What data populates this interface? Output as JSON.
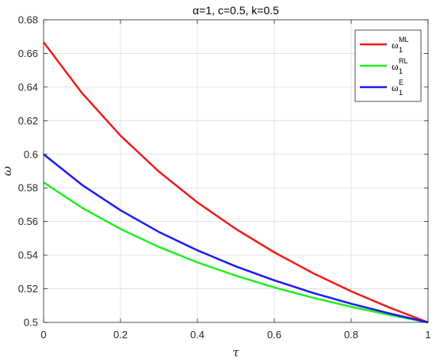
{
  "chart_data": {
    "type": "line",
    "title": "α=1, c=0.5, k=0.5",
    "xlabel": "τ",
    "ylabel": "ω",
    "xlim": [
      0,
      1
    ],
    "ylim": [
      0.5,
      0.68
    ],
    "xticks": [
      0,
      0.2,
      0.4,
      0.6,
      0.8,
      1
    ],
    "xtick_labels": [
      "0",
      "0.2",
      "0.4",
      "0.6",
      "0.8",
      "1"
    ],
    "yticks": [
      0.5,
      0.52,
      0.54,
      0.56,
      0.58,
      0.6,
      0.62,
      0.64,
      0.66,
      0.68
    ],
    "ytick_labels": [
      "0.5",
      "0.52",
      "0.54",
      "0.56",
      "0.58",
      "0.6",
      "0.62",
      "0.64",
      "0.66",
      "0.68"
    ],
    "grid": true,
    "legend_position": "top-right",
    "x": [
      0,
      0.1,
      0.2,
      0.3,
      0.4,
      0.5,
      0.6,
      0.7,
      0.8,
      0.9,
      1.0
    ],
    "series": [
      {
        "name": "ω",
        "name_sup": "ML",
        "name_sub": "1",
        "color": "#ee1c1c",
        "values": [
          0.6667,
          0.6364,
          0.6111,
          0.5897,
          0.5714,
          0.5556,
          0.5417,
          0.5294,
          0.5185,
          0.5088,
          0.5
        ]
      },
      {
        "name": "ω",
        "name_sup": "RL",
        "name_sub": "1",
        "color": "#22ee22",
        "values": [
          0.5833,
          0.5682,
          0.5556,
          0.5449,
          0.5357,
          0.5278,
          0.5208,
          0.5147,
          0.5093,
          0.5044,
          0.5
        ]
      },
      {
        "name": "ω",
        "name_sup": "E",
        "name_sub": "1",
        "color": "#1c1cee",
        "values": [
          0.6,
          0.5818,
          0.5667,
          0.5538,
          0.5429,
          0.5333,
          0.525,
          0.5176,
          0.5111,
          0.5053,
          0.5
        ]
      }
    ]
  }
}
